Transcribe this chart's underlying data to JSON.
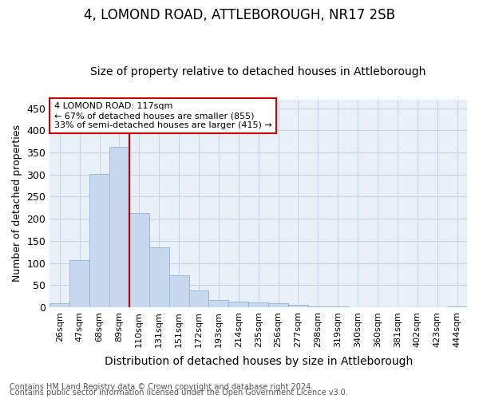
{
  "title": "4, LOMOND ROAD, ATTLEBOROUGH, NR17 2SB",
  "subtitle": "Size of property relative to detached houses in Attleborough",
  "xlabel": "Distribution of detached houses by size in Attleborough",
  "ylabel": "Number of detached properties",
  "categories": [
    "26sqm",
    "47sqm",
    "68sqm",
    "89sqm",
    "110sqm",
    "131sqm",
    "151sqm",
    "172sqm",
    "193sqm",
    "214sqm",
    "235sqm",
    "256sqm",
    "277sqm",
    "298sqm",
    "319sqm",
    "340sqm",
    "360sqm",
    "381sqm",
    "402sqm",
    "423sqm",
    "444sqm"
  ],
  "values": [
    8,
    107,
    302,
    362,
    212,
    136,
    72,
    38,
    16,
    12,
    11,
    9,
    5,
    2,
    1,
    0,
    0,
    0,
    0,
    0,
    1
  ],
  "bar_color": "#c8d8ee",
  "bar_edge_color": "#8ab4d8",
  "vline_index": 4,
  "vline_color": "#cc0000",
  "annotation_line1": "4 LOMOND ROAD: 117sqm",
  "annotation_line2": "← 67% of detached houses are smaller (855)",
  "annotation_line3": "33% of semi-detached houses are larger (415) →",
  "annotation_box_color": "#ffffff",
  "annotation_box_edge_color": "#cc0000",
  "ylim": [
    0,
    470
  ],
  "yticks": [
    0,
    50,
    100,
    150,
    200,
    250,
    300,
    350,
    400,
    450
  ],
  "grid_color": "#c8d4e8",
  "background_color": "#eaf0f8",
  "footnote1": "Contains HM Land Registry data © Crown copyright and database right 2024.",
  "footnote2": "Contains public sector information licensed under the Open Government Licence v3.0.",
  "title_fontsize": 12,
  "subtitle_fontsize": 10,
  "xlabel_fontsize": 10,
  "ylabel_fontsize": 9,
  "tick_fontsize": 8,
  "annotation_fontsize": 8,
  "footnote_fontsize": 7
}
